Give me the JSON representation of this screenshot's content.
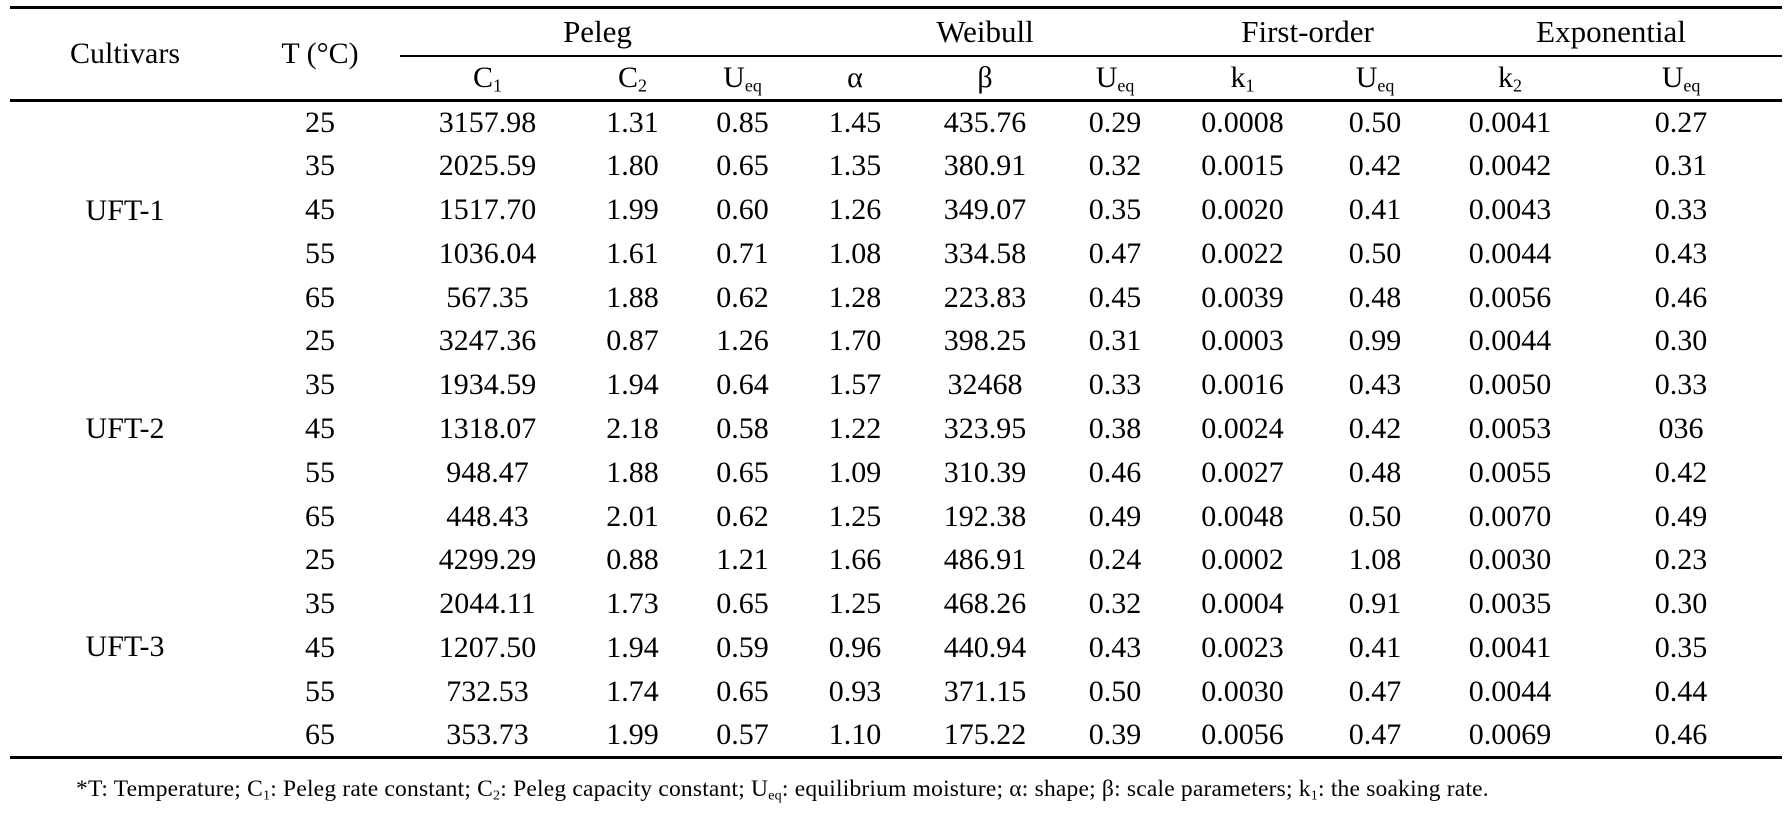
{
  "page": {
    "background_color": "#ffffff",
    "text_color": "#000000"
  },
  "table": {
    "header": {
      "cultivars_label": "Cultivars",
      "temperature_label": "T (°C)",
      "groups": [
        {
          "label": "Peleg",
          "span": 3
        },
        {
          "label": "Weibull",
          "span": 3
        },
        {
          "label": "First-order",
          "span": 2
        },
        {
          "label": "Exponential",
          "span": 2
        }
      ],
      "subcolumns": [
        {
          "base": "C",
          "sub": "1"
        },
        {
          "base": "C",
          "sub": "2"
        },
        {
          "base": "U",
          "sub": "eq"
        },
        {
          "base": "α",
          "sub": ""
        },
        {
          "base": "β",
          "sub": ""
        },
        {
          "base": "U",
          "sub": "eq"
        },
        {
          "base": "k",
          "sub": "1"
        },
        {
          "base": "U",
          "sub": "eq"
        },
        {
          "base": "k",
          "sub": "2"
        },
        {
          "base": "U",
          "sub": "eq"
        }
      ]
    },
    "groups": [
      {
        "cultivar": "UFT-1",
        "rows": [
          {
            "temp": "25",
            "values": [
              "3157.98",
              "1.31",
              "0.85",
              "1.45",
              "435.76",
              "0.29",
              "0.0008",
              "0.50",
              "0.0041",
              "0.27"
            ]
          },
          {
            "temp": "35",
            "values": [
              "2025.59",
              "1.80",
              "0.65",
              "1.35",
              "380.91",
              "0.32",
              "0.0015",
              "0.42",
              "0.0042",
              "0.31"
            ]
          },
          {
            "temp": "45",
            "values": [
              "1517.70",
              "1.99",
              "0.60",
              "1.26",
              "349.07",
              "0.35",
              "0.0020",
              "0.41",
              "0.0043",
              "0.33"
            ]
          },
          {
            "temp": "55",
            "values": [
              "1036.04",
              "1.61",
              "0.71",
              "1.08",
              "334.58",
              "0.47",
              "0.0022",
              "0.50",
              "0.0044",
              "0.43"
            ]
          },
          {
            "temp": "65",
            "values": [
              "567.35",
              "1.88",
              "0.62",
              "1.28",
              "223.83",
              "0.45",
              "0.0039",
              "0.48",
              "0.0056",
              "0.46"
            ]
          }
        ]
      },
      {
        "cultivar": "UFT-2",
        "rows": [
          {
            "temp": "25",
            "values": [
              "3247.36",
              "0.87",
              "1.26",
              "1.70",
              "398.25",
              "0.31",
              "0.0003",
              "0.99",
              "0.0044",
              "0.30"
            ]
          },
          {
            "temp": "35",
            "values": [
              "1934.59",
              "1.94",
              "0.64",
              "1.57",
              "32468",
              "0.33",
              "0.0016",
              "0.43",
              "0.0050",
              "0.33"
            ]
          },
          {
            "temp": "45",
            "values": [
              "1318.07",
              "2.18",
              "0.58",
              "1.22",
              "323.95",
              "0.38",
              "0.0024",
              "0.42",
              "0.0053",
              "036"
            ]
          },
          {
            "temp": "55",
            "values": [
              "948.47",
              "1.88",
              "0.65",
              "1.09",
              "310.39",
              "0.46",
              "0.0027",
              "0.48",
              "0.0055",
              "0.42"
            ]
          },
          {
            "temp": "65",
            "values": [
              "448.43",
              "2.01",
              "0.62",
              "1.25",
              "192.38",
              "0.49",
              "0.0048",
              "0.50",
              "0.0070",
              "0.49"
            ]
          }
        ]
      },
      {
        "cultivar": "UFT-3",
        "rows": [
          {
            "temp": "25",
            "values": [
              "4299.29",
              "0.88",
              "1.21",
              "1.66",
              "486.91",
              "0.24",
              "0.0002",
              "1.08",
              "0.0030",
              "0.23"
            ]
          },
          {
            "temp": "35",
            "values": [
              "2044.11",
              "1.73",
              "0.65",
              "1.25",
              "468.26",
              "0.32",
              "0.0004",
              "0.91",
              "0.0035",
              "0.30"
            ]
          },
          {
            "temp": "45",
            "values": [
              "1207.50",
              "1.94",
              "0.59",
              "0.96",
              "440.94",
              "0.43",
              "0.0023",
              "0.41",
              "0.0041",
              "0.35"
            ]
          },
          {
            "temp": "55",
            "values": [
              "732.53",
              "1.74",
              "0.65",
              "0.93",
              "371.15",
              "0.50",
              "0.0030",
              "0.47",
              "0.0044",
              "0.44"
            ]
          },
          {
            "temp": "65",
            "values": [
              "353.73",
              "1.99",
              "0.57",
              "1.10",
              "175.22",
              "0.39",
              "0.0056",
              "0.47",
              "0.0069",
              "0.46"
            ]
          }
        ]
      }
    ]
  },
  "footnote": {
    "segments": [
      {
        "text": "*T: Temperature; C"
      },
      {
        "sub": "1"
      },
      {
        "text": ": Peleg rate constant; C"
      },
      {
        "sub": "2"
      },
      {
        "text": ": Peleg capacity constant; U"
      },
      {
        "sub": "eq"
      },
      {
        "text": ": equilibrium moisture; α: shape; β: scale parameters; k"
      },
      {
        "sub": "1"
      },
      {
        "text": ": the soaking rate."
      }
    ]
  }
}
